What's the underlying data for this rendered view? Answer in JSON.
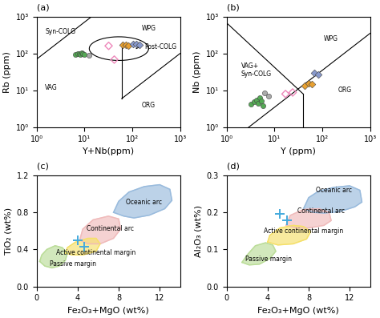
{
  "chart_data": [
    {
      "type": "scatter",
      "panel_label": "(a)",
      "xlabel": "Y+Nb(ppm)",
      "ylabel": "Rb (ppm)",
      "log": true,
      "xlim": [
        1,
        1000
      ],
      "ylim": [
        1,
        1000
      ],
      "xticks": [
        {
          "value": 1,
          "label": "10⁰"
        },
        {
          "value": 10,
          "label": "10¹"
        },
        {
          "value": 100,
          "label": "10²"
        },
        {
          "value": 1000,
          "label": "10³"
        }
      ],
      "yticks": [
        {
          "value": 1,
          "label": "10⁰"
        },
        {
          "value": 10,
          "label": "10¹"
        },
        {
          "value": 100,
          "label": "10²"
        },
        {
          "value": 1000,
          "label": "10³"
        }
      ],
      "lines": [
        {
          "x": [
            1,
            1000
          ],
          "y": [
            70,
            70000
          ]
        },
        {
          "x": [
            60,
            60
          ],
          "y": [
            6,
            200
          ]
        },
        {
          "x": [
            60,
            1000
          ],
          "y": [
            6,
            100
          ]
        }
      ],
      "series": [
        {
          "color": "#55aa55",
          "marker": "circle",
          "x": [
            6.5,
            7.2,
            7.8,
            8.2,
            8.8,
            9.2,
            9.8
          ],
          "y": [
            93,
            100,
            97,
            94,
            101,
            98,
            96
          ]
        },
        {
          "color": "#aaaaaa",
          "marker": "circle",
          "x": [
            12.5
          ],
          "y": [
            87
          ]
        },
        {
          "color": "#ee88bb",
          "marker": "hollow_diamond",
          "x": [
            32,
            42
          ],
          "y": [
            160,
            68
          ]
        },
        {
          "color": "#e8a030",
          "marker": "diamond",
          "x": [
            62,
            72,
            82
          ],
          "y": [
            168,
            172,
            162
          ]
        },
        {
          "color": "#8899cc",
          "marker": "diamond",
          "x": [
            105,
            120,
            140
          ],
          "y": [
            178,
            182,
            172
          ]
        }
      ],
      "ellipse": {
        "cx_log": 1.72,
        "cy_log": 2.13,
        "rx_log": 0.62,
        "ry_log": 0.32
      },
      "arrows": [
        {
          "x": [
            128,
            175
          ],
          "y": [
            155,
            155
          ]
        }
      ],
      "annotations": [
        {
          "text": "Syn-COLG",
          "x": 1.5,
          "y": 380,
          "align": "left"
        },
        {
          "text": "WPG",
          "x": 220,
          "y": 480,
          "align": "center"
        },
        {
          "text": "VAG",
          "x": 1.5,
          "y": 12,
          "align": "left"
        },
        {
          "text": "ORG",
          "x": 220,
          "y": 4,
          "align": "center"
        },
        {
          "text": "Post-COLG",
          "x": 180,
          "y": 148,
          "align": "left"
        }
      ]
    },
    {
      "type": "scatter",
      "panel_label": "(b)",
      "xlabel": "Y (ppm)",
      "ylabel": "Nb (ppm)",
      "log": true,
      "xlim": [
        1,
        1000
      ],
      "ylim": [
        1,
        1000
      ],
      "xticks": [
        {
          "value": 1,
          "label": "10⁰"
        },
        {
          "value": 10,
          "label": "10¹"
        },
        {
          "value": 100,
          "label": "10²"
        },
        {
          "value": 1000,
          "label": "10³"
        }
      ],
      "yticks": [
        {
          "value": 1,
          "label": "10⁰"
        },
        {
          "value": 10,
          "label": "10¹"
        },
        {
          "value": 100,
          "label": "10²"
        },
        {
          "value": 1000,
          "label": "10³"
        }
      ],
      "lines": [
        {
          "x": [
            1,
            1000
          ],
          "y": [
            0.35,
            350
          ]
        },
        {
          "x": [
            1,
            40
          ],
          "y": [
            668.34,
            7.99
          ]
        },
        {
          "x": [
            40,
            40
          ],
          "y": [
            1,
            8
          ]
        }
      ],
      "series": [
        {
          "color": "#55aa55",
          "marker": "circle",
          "x": [
            3.2,
            3.8,
            4.2,
            4.6,
            5.0,
            5.4,
            5.8
          ],
          "y": [
            4.2,
            5.0,
            5.5,
            4.5,
            6.5,
            5.2,
            3.9
          ]
        },
        {
          "color": "#aaaaaa",
          "marker": "circle",
          "x": [
            6.2,
            7.5
          ],
          "y": [
            8.5,
            7.0
          ]
        },
        {
          "color": "#ee88bb",
          "marker": "hollow_diamond",
          "x": [
            17,
            24
          ],
          "y": [
            8.0,
            8.8
          ]
        },
        {
          "color": "#e8a030",
          "marker": "diamond",
          "x": [
            43,
            52,
            60
          ],
          "y": [
            13.5,
            15.5,
            14.5
          ]
        },
        {
          "color": "#8899cc",
          "marker": "diamond",
          "x": [
            68,
            82
          ],
          "y": [
            30,
            27
          ]
        }
      ],
      "annotations": [
        {
          "text": "WPG",
          "x": 150,
          "y": 250,
          "align": "center"
        },
        {
          "text": "VAG+\nSyn-COLG",
          "x": 2.0,
          "y": 35,
          "align": "left"
        },
        {
          "text": "ORG",
          "x": 300,
          "y": 10,
          "align": "center"
        }
      ]
    },
    {
      "type": "scatter",
      "panel_label": "(c)",
      "xlabel": "Fe₂O₃+MgO (wt%)",
      "ylabel": "TiO₂ (wt%)",
      "xlim": [
        0,
        14
      ],
      "ylim": [
        0,
        1.2
      ],
      "xticks": [
        0,
        4,
        8,
        12
      ],
      "yticks": [
        {
          "value": 0,
          "label": "0.0"
        },
        0.4,
        0.8,
        1.2
      ],
      "regions": [
        {
          "color": "#99bbdd",
          "x": [
            7.5,
            8.5,
            9.5,
            11.0,
            12.5,
            13.2,
            13.0,
            12.0,
            10.5,
            9.0,
            8.0,
            7.5
          ],
          "y": [
            0.8,
            0.76,
            0.74,
            0.77,
            0.84,
            0.93,
            1.05,
            1.1,
            1.08,
            1.02,
            0.92,
            0.8
          ]
        },
        {
          "color": "#f0bbbb",
          "x": [
            4.2,
            5.0,
            6.2,
            7.5,
            8.2,
            8.0,
            7.0,
            5.5,
            4.5,
            4.2
          ],
          "y": [
            0.5,
            0.46,
            0.46,
            0.52,
            0.62,
            0.73,
            0.76,
            0.72,
            0.62,
            0.5
          ]
        },
        {
          "color": "#f5e06a",
          "x": [
            2.8,
            3.5,
            4.5,
            5.8,
            6.2,
            5.8,
            5.0,
            3.8,
            3.0,
            2.8
          ],
          "y": [
            0.36,
            0.34,
            0.34,
            0.38,
            0.46,
            0.52,
            0.52,
            0.48,
            0.42,
            0.36
          ]
        },
        {
          "color": "#bbdd99",
          "x": [
            0.3,
            0.8,
            1.5,
            2.2,
            2.8,
            3.0,
            2.5,
            1.8,
            1.0,
            0.5,
            0.3
          ],
          "y": [
            0.27,
            0.22,
            0.2,
            0.22,
            0.28,
            0.36,
            0.42,
            0.44,
            0.4,
            0.34,
            0.27
          ]
        }
      ],
      "series": [
        {
          "color": "#44aadd",
          "marker": "plus",
          "x": [
            4.0
          ],
          "y": [
            0.5
          ]
        },
        {
          "color": "#44aadd",
          "marker": "plus",
          "x": [
            4.6
          ],
          "y": [
            0.43
          ]
        }
      ],
      "annotations": [
        {
          "text": "Oceanic arc",
          "x": 10.5,
          "y": 0.91,
          "align": "center"
        },
        {
          "text": "Continental arc",
          "x": 7.2,
          "y": 0.62,
          "align": "center"
        },
        {
          "text": "Active continental margin",
          "x": 5.8,
          "y": 0.36,
          "align": "center"
        },
        {
          "text": "Passive margin",
          "x": 1.3,
          "y": 0.245,
          "align": "left"
        }
      ]
    },
    {
      "type": "scatter",
      "panel_label": "(d)",
      "xlabel": "Fe₂O₃+MgO (wt%)",
      "ylabel": "Al₂O₃ (wt%)",
      "xlim": [
        0,
        14
      ],
      "ylim": [
        0,
        0.3
      ],
      "xticks": [
        0,
        4,
        8,
        12
      ],
      "yticks": [
        {
          "value": 0,
          "label": "0.0"
        },
        0.1,
        0.2,
        0.3
      ],
      "regions": [
        {
          "color": "#99bbdd",
          "x": [
            7.5,
            8.5,
            9.5,
            11.0,
            12.5,
            13.2,
            13.0,
            12.0,
            10.5,
            9.0,
            8.0,
            7.5
          ],
          "y": [
            0.21,
            0.2,
            0.198,
            0.202,
            0.215,
            0.228,
            0.26,
            0.272,
            0.268,
            0.258,
            0.24,
            0.21
          ]
        },
        {
          "color": "#f0bbbb",
          "x": [
            5.8,
            6.8,
            8.0,
            9.5,
            10.2,
            10.0,
            9.0,
            7.5,
            6.2,
            5.8
          ],
          "y": [
            0.165,
            0.158,
            0.158,
            0.165,
            0.178,
            0.2,
            0.21,
            0.208,
            0.192,
            0.165
          ]
        },
        {
          "color": "#f5e06a",
          "x": [
            4.0,
            5.0,
            6.5,
            7.8,
            8.2,
            7.5,
            6.5,
            5.2,
            4.2,
            4.0
          ],
          "y": [
            0.12,
            0.112,
            0.115,
            0.128,
            0.148,
            0.162,
            0.165,
            0.158,
            0.138,
            0.12
          ]
        },
        {
          "color": "#bbdd99",
          "x": [
            1.5,
            2.2,
            3.2,
            4.2,
            4.8,
            4.5,
            3.8,
            2.8,
            2.0,
            1.5
          ],
          "y": [
            0.065,
            0.058,
            0.06,
            0.075,
            0.095,
            0.112,
            0.118,
            0.11,
            0.085,
            0.065
          ]
        }
      ],
      "series": [
        {
          "color": "#44aadd",
          "marker": "plus",
          "x": [
            5.2
          ],
          "y": [
            0.195
          ]
        },
        {
          "color": "#44aadd",
          "marker": "plus",
          "x": [
            5.9
          ],
          "y": [
            0.178
          ]
        }
      ],
      "annotations": [
        {
          "text": "Oceanic arc",
          "x": 10.5,
          "y": 0.261,
          "align": "center"
        },
        {
          "text": "Continental arc",
          "x": 9.2,
          "y": 0.204,
          "align": "center"
        },
        {
          "text": "Active continental margin",
          "x": 7.5,
          "y": 0.15,
          "align": "center"
        },
        {
          "text": "Passive margin",
          "x": 1.8,
          "y": 0.073,
          "align": "left"
        }
      ]
    }
  ]
}
